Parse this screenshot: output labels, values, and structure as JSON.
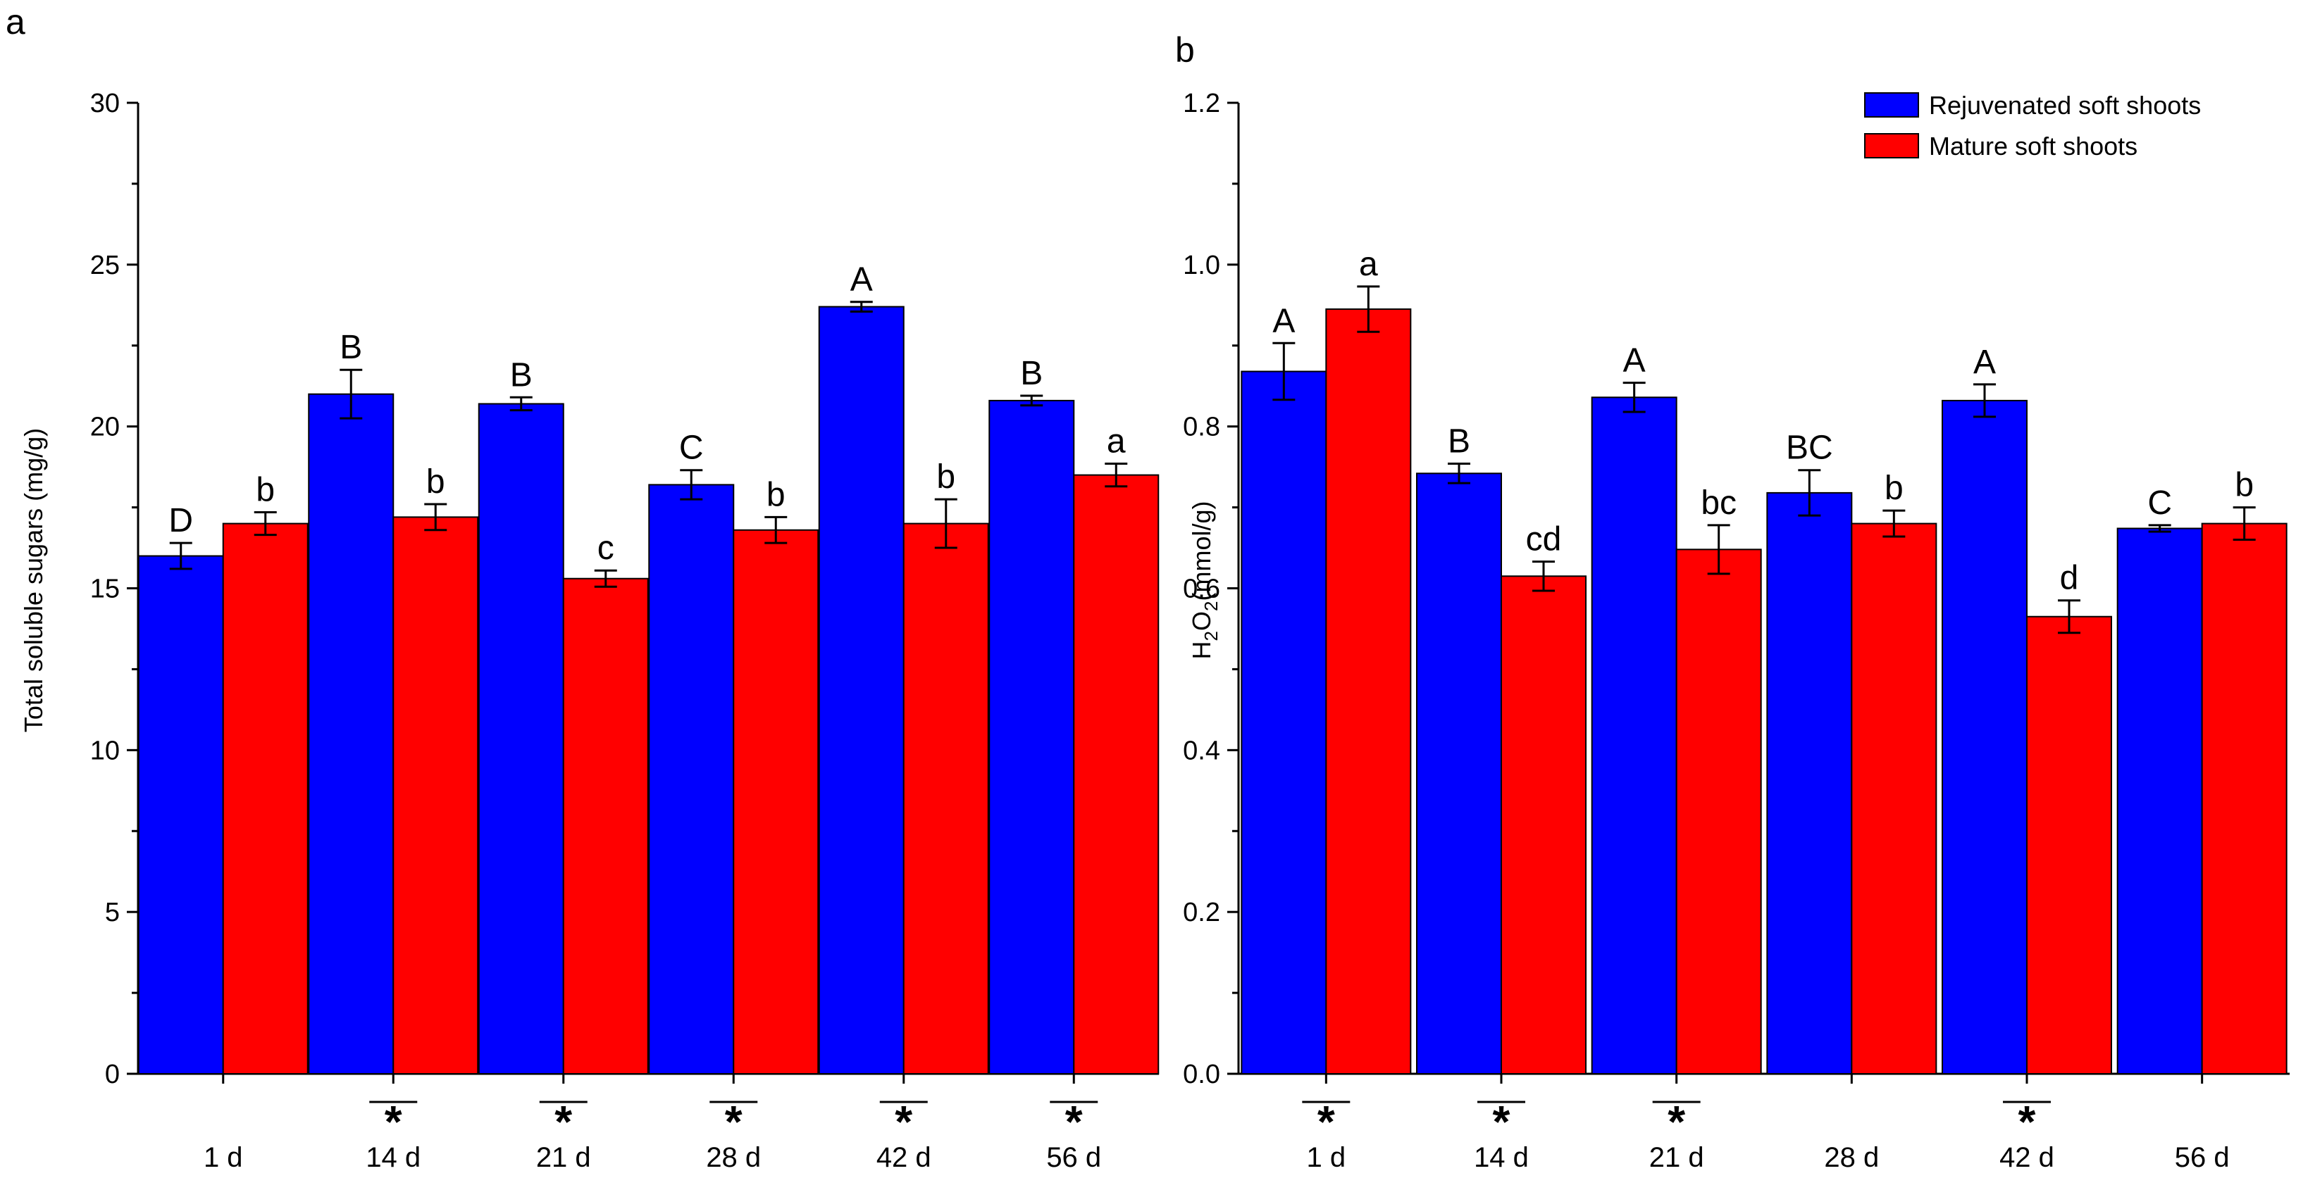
{
  "colors": {
    "rejuvenated": "#0000ff",
    "mature": "#ff0000"
  },
  "legend": [
    {
      "label": "Rejuvenated soft shoots",
      "color": "#0000ff"
    },
    {
      "label": "Mature soft shoots",
      "color": "#ff0000"
    }
  ],
  "chart_data": [
    {
      "panel": "a",
      "type": "bar",
      "title": "",
      "xlabel": "",
      "ylabel": "Total soluble sugars (mg/g)",
      "ylim": [
        0,
        30
      ],
      "yticks": [
        "0",
        "5",
        "10",
        "15",
        "20",
        "25",
        "30"
      ],
      "categories": [
        "1 d",
        "14 d",
        "21 d",
        "28 d",
        "42 d",
        "56 d"
      ],
      "series": [
        {
          "name": "Rejuvenated soft shoots",
          "values": [
            16.0,
            21.0,
            20.7,
            18.2,
            23.7,
            20.8
          ],
          "errors": [
            0.4,
            0.75,
            0.2,
            0.45,
            0.15,
            0.15
          ],
          "letters": [
            "D",
            "B",
            "B",
            "C",
            "A",
            "B"
          ]
        },
        {
          "name": "Mature soft shoots",
          "values": [
            17.0,
            17.2,
            15.3,
            16.8,
            17.0,
            18.5
          ],
          "errors": [
            0.35,
            0.4,
            0.25,
            0.4,
            0.75,
            0.35
          ],
          "letters": [
            "b",
            "b",
            "c",
            "b",
            "b",
            "a"
          ]
        }
      ],
      "significant": [
        false,
        true,
        true,
        true,
        true,
        true
      ],
      "star": "*"
    },
    {
      "panel": "b",
      "type": "bar",
      "title": "",
      "xlabel": "",
      "ylabel": "H2O2 (mmol/g)",
      "ylim": [
        0,
        1.2
      ],
      "yticks": [
        "0.0",
        "0.2",
        "0.4",
        "0.6",
        "0.8",
        "1.0",
        "1.2"
      ],
      "categories": [
        "1 d",
        "14 d",
        "21 d",
        "28 d",
        "42 d",
        "56 d"
      ],
      "series": [
        {
          "name": "Rejuvenated soft shoots",
          "values": [
            0.868,
            0.742,
            0.836,
            0.718,
            0.832,
            0.674
          ],
          "errors": [
            0.035,
            0.012,
            0.018,
            0.028,
            0.02,
            0.004
          ],
          "letters": [
            "A",
            "B",
            "A",
            "BC",
            "A",
            "C"
          ]
        },
        {
          "name": "Mature soft shoots",
          "values": [
            0.945,
            0.615,
            0.648,
            0.68,
            0.565,
            0.68
          ],
          "errors": [
            0.028,
            0.018,
            0.03,
            0.016,
            0.02,
            0.02
          ],
          "letters": [
            "a",
            "cd",
            "bc",
            "b",
            "d",
            "b"
          ]
        }
      ],
      "significant": [
        true,
        true,
        true,
        false,
        true,
        false
      ],
      "star": "*"
    }
  ]
}
